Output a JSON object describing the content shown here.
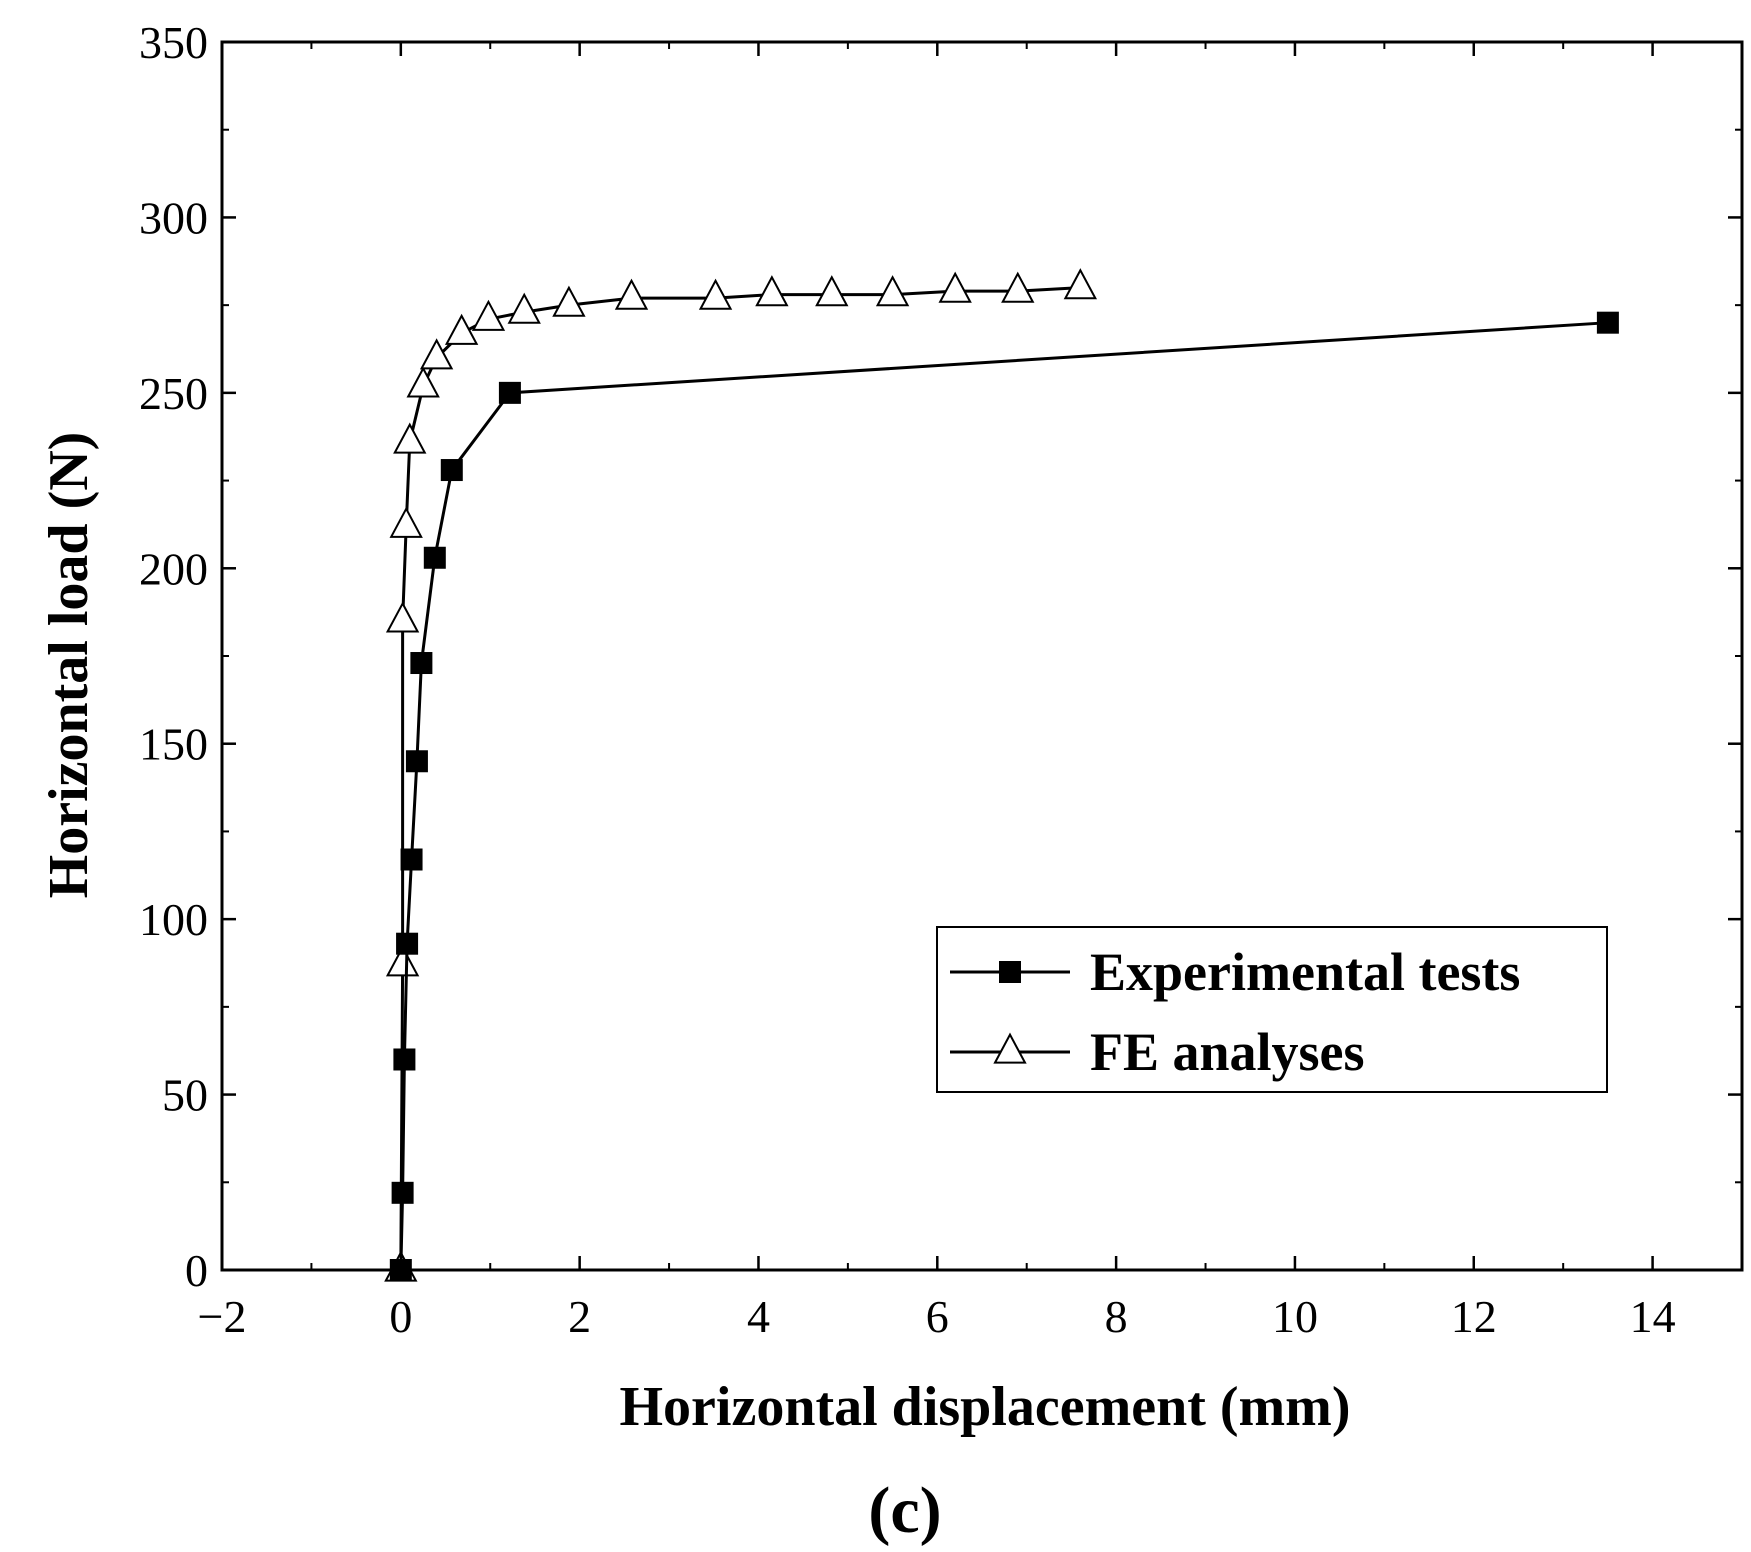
{
  "chart_data": {
    "type": "line",
    "panel_label": "(c)",
    "xlabel": "Horizontal displacement (mm)",
    "ylabel": "Horizontal load (N)",
    "xlim": [
      -2,
      15
    ],
    "ylim": [
      0,
      350
    ],
    "x_ticks": [
      -2,
      0,
      2,
      4,
      6,
      8,
      10,
      12,
      14
    ],
    "x_tick_labels": [
      "−2",
      "0",
      "2",
      "4",
      "6",
      "8",
      "10",
      "12",
      "14"
    ],
    "y_ticks": [
      0,
      50,
      100,
      150,
      200,
      250,
      300,
      350
    ],
    "y_tick_labels": [
      "0",
      "50",
      "100",
      "150",
      "200",
      "250",
      "300",
      "350"
    ],
    "grid": false,
    "legend_position": "lower-right",
    "series": [
      {
        "name": "Experimental tests",
        "marker": "filled-square",
        "color": "#000000",
        "x": [
          0.0,
          0.02,
          0.04,
          0.07,
          0.12,
          0.18,
          0.23,
          0.38,
          0.57,
          1.22,
          13.5
        ],
        "y": [
          0,
          22,
          60,
          93,
          117,
          145,
          173,
          203,
          228,
          250,
          270
        ]
      },
      {
        "name": "FE analyses",
        "marker": "open-triangle",
        "color": "#000000",
        "x": [
          0.0,
          0.02,
          0.02,
          0.06,
          0.1,
          0.25,
          0.4,
          0.68,
          0.98,
          1.38,
          1.88,
          2.58,
          3.52,
          4.15,
          4.82,
          5.5,
          6.2,
          6.9,
          7.6
        ],
        "y": [
          0,
          87,
          185,
          212,
          236,
          252,
          260,
          267,
          271,
          273,
          275,
          277,
          277,
          278,
          278,
          278,
          279,
          279,
          280
        ]
      }
    ]
  }
}
